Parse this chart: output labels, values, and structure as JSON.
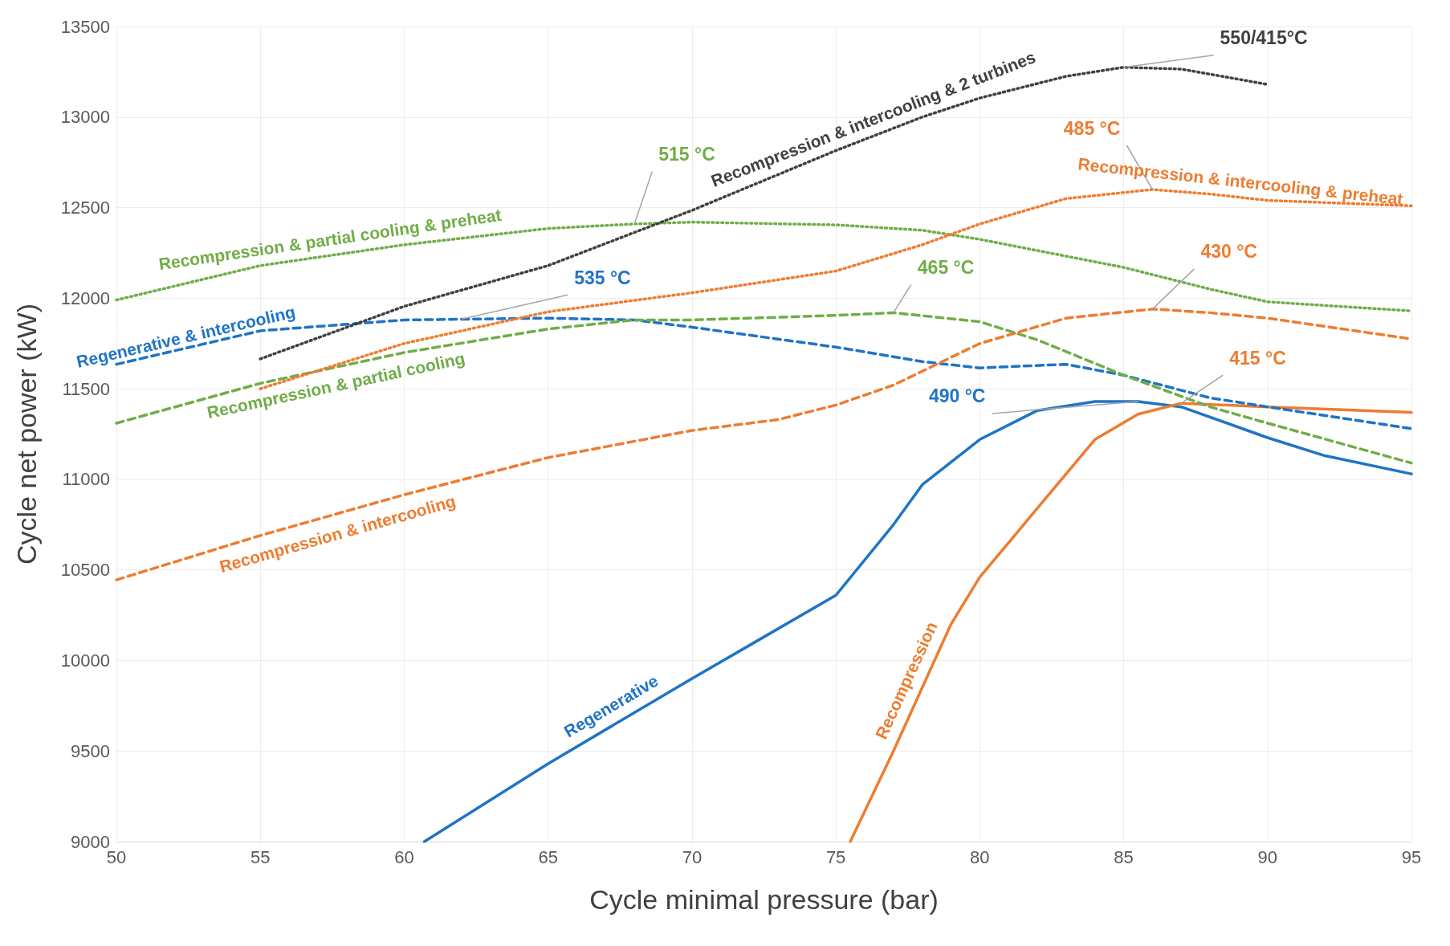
{
  "chart_data": {
    "type": "line",
    "xlabel": "Cycle minimal pressure (bar)",
    "ylabel": "Cycle net power (kW)",
    "xlim": [
      50,
      95
    ],
    "ylim": [
      9000,
      13500
    ],
    "xticks": [
      50,
      55,
      60,
      65,
      70,
      75,
      80,
      85,
      90,
      95
    ],
    "yticks": [
      9000,
      9500,
      10000,
      10500,
      11000,
      11500,
      12000,
      12500,
      13000,
      13500
    ],
    "grid": true,
    "legend": false,
    "marker": "none",
    "series": [
      {
        "name": "Regenerative",
        "color": "#1f74c6",
        "line_style": "solid",
        "x": [
          60.7,
          65,
          70,
          72.5,
          75,
          77,
          78,
          80,
          82,
          84,
          85.5,
          87,
          90,
          92,
          95
        ],
        "values": [
          9000,
          9430,
          9900,
          10130,
          10360,
          10750,
          10970,
          11220,
          11380,
          11430,
          11430,
          11400,
          11230,
          11130,
          11030
        ]
      },
      {
        "name": "Recompression",
        "color": "#ed7d31",
        "line_style": "solid",
        "x": [
          75.5,
          77,
          79,
          80,
          82,
          84,
          85.5,
          87,
          90,
          95
        ],
        "values": [
          9000,
          9500,
          10200,
          10460,
          10840,
          11220,
          11360,
          11420,
          11400,
          11370
        ]
      },
      {
        "name": "Regenerative & intercooling",
        "color": "#1f74c6",
        "line_style": "dashed",
        "x": [
          50,
          55,
          60,
          65,
          68,
          70,
          75,
          78,
          80,
          83,
          85,
          88,
          90,
          95
        ],
        "values": [
          11635,
          11820,
          11880,
          11890,
          11880,
          11840,
          11730,
          11650,
          11615,
          11635,
          11575,
          11450,
          11400,
          11280
        ]
      },
      {
        "name": "Recompression & partial cooling",
        "color": "#70ad47",
        "line_style": "dashed",
        "x": [
          50,
          55,
          60,
          65,
          68,
          70,
          75,
          77,
          80,
          82,
          85,
          88,
          90,
          95
        ],
        "values": [
          11310,
          11530,
          11700,
          11830,
          11880,
          11880,
          11905,
          11920,
          11870,
          11770,
          11575,
          11400,
          11310,
          11090
        ]
      },
      {
        "name": "Recompression & intercooling",
        "color": "#ed7d31",
        "line_style": "dashed",
        "x": [
          50,
          55,
          60,
          65,
          70,
          73,
          75,
          77,
          80,
          83,
          86,
          88,
          90,
          95
        ],
        "values": [
          10445,
          10690,
          10915,
          11120,
          11270,
          11330,
          11410,
          11520,
          11750,
          11890,
          11940,
          11920,
          11890,
          11775
        ]
      },
      {
        "name": "Recompression & partial cooling & preheat",
        "color": "#70ad47",
        "line_style": "dotted",
        "x": [
          50,
          55,
          60,
          65,
          68,
          70,
          75,
          78,
          80,
          85,
          88,
          90,
          95
        ],
        "values": [
          11990,
          12180,
          12295,
          12385,
          12410,
          12420,
          12405,
          12375,
          12325,
          12170,
          12050,
          11980,
          11930
        ]
      },
      {
        "name": "Recompression & intercooling & preheat",
        "color": "#ed7d31",
        "line_style": "dotted",
        "x": [
          55,
          60,
          65,
          70,
          75,
          78,
          80,
          83,
          86,
          88,
          90,
          95
        ],
        "values": [
          11500,
          11750,
          11925,
          12030,
          12150,
          12295,
          12410,
          12550,
          12600,
          12575,
          12540,
          12510
        ]
      },
      {
        "name": "Recompression & intercooling & 2 turbines",
        "color": "#404040",
        "line_style": "dotted",
        "x": [
          55,
          60,
          65,
          70,
          75,
          78,
          80,
          83,
          85,
          87,
          90
        ],
        "values": [
          11665,
          11955,
          12180,
          12485,
          12815,
          13000,
          13105,
          13225,
          13275,
          13265,
          13180
        ]
      }
    ],
    "annotations": [
      {
        "text": "550/415°C",
        "x": 85,
        "y": 13275
      },
      {
        "text": "485 °C",
        "x": 86,
        "y": 12600
      },
      {
        "text": "515 °C",
        "x": 68,
        "y": 12410
      },
      {
        "text": "535 °C",
        "x": 62,
        "y": 11885
      },
      {
        "text": "465 °C",
        "x": 77,
        "y": 11920
      },
      {
        "text": "430 °C",
        "x": 86,
        "y": 11940
      },
      {
        "text": "415 °C",
        "x": 87,
        "y": 11420
      },
      {
        "text": "490 °C",
        "x": 85.5,
        "y": 11430
      }
    ]
  }
}
